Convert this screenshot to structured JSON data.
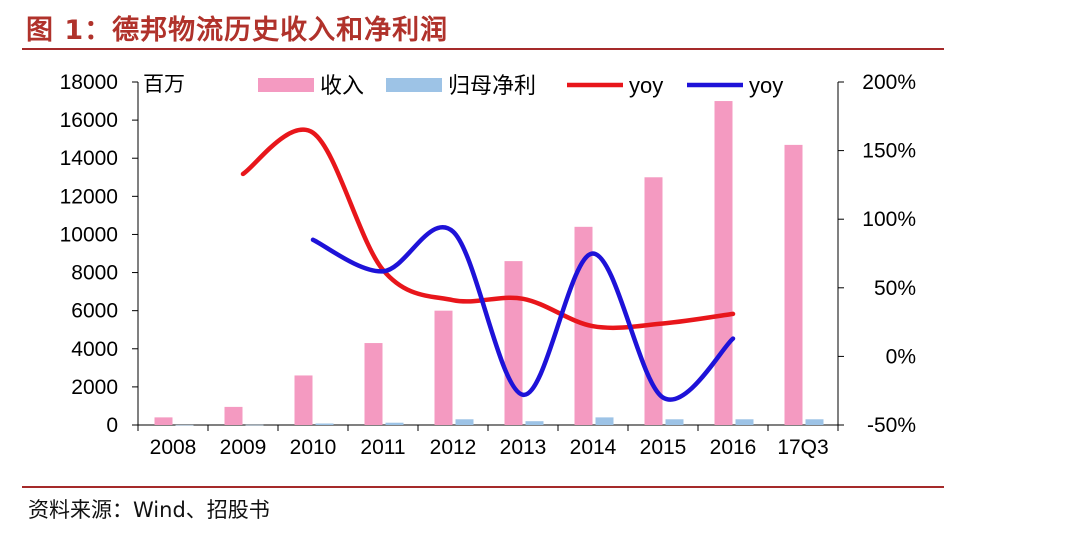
{
  "title": "图 1：德邦物流历史收入和净利润",
  "source": "资料来源：Wind、招股书",
  "chart_data": {
    "type": "bar",
    "categories": [
      "2008",
      "2009",
      "2010",
      "2011",
      "2012",
      "2013",
      "2014",
      "2015",
      "2016",
      "17Q3"
    ],
    "unit_label": "百万",
    "ylim": [
      0,
      18000
    ],
    "yticks": [
      "0",
      "2000",
      "4000",
      "6000",
      "8000",
      "10000",
      "12000",
      "14000",
      "16000",
      "18000"
    ],
    "y2lim": [
      -50,
      200
    ],
    "y2ticks": [
      "-50%",
      "0%",
      "50%",
      "100%",
      "150%",
      "200%"
    ],
    "bars": [
      {
        "name": "收入",
        "color": "#f49ac1",
        "values": [
          400,
          950,
          2600,
          4300,
          6000,
          8600,
          10400,
          13000,
          17000,
          14700
        ]
      },
      {
        "name": "归母净利",
        "color": "#9dc3e6",
        "values": [
          5,
          10,
          80,
          120,
          300,
          200,
          400,
          300,
          300,
          300
        ]
      }
    ],
    "lines": [
      {
        "name": "yoy",
        "color": "#e8161b",
        "points": [
          [
            1,
            133
          ],
          [
            2,
            163
          ],
          [
            3,
            63
          ],
          [
            4,
            41
          ],
          [
            5,
            42
          ],
          [
            6,
            22
          ],
          [
            7,
            24
          ],
          [
            8,
            31
          ]
        ]
      },
      {
        "name": "yoy",
        "color": "#1e12d8",
        "points": [
          [
            2,
            85
          ],
          [
            3,
            62
          ],
          [
            4,
            91
          ],
          [
            5,
            -28
          ],
          [
            6,
            75
          ],
          [
            7,
            -30
          ],
          [
            8,
            13
          ]
        ]
      }
    ]
  }
}
